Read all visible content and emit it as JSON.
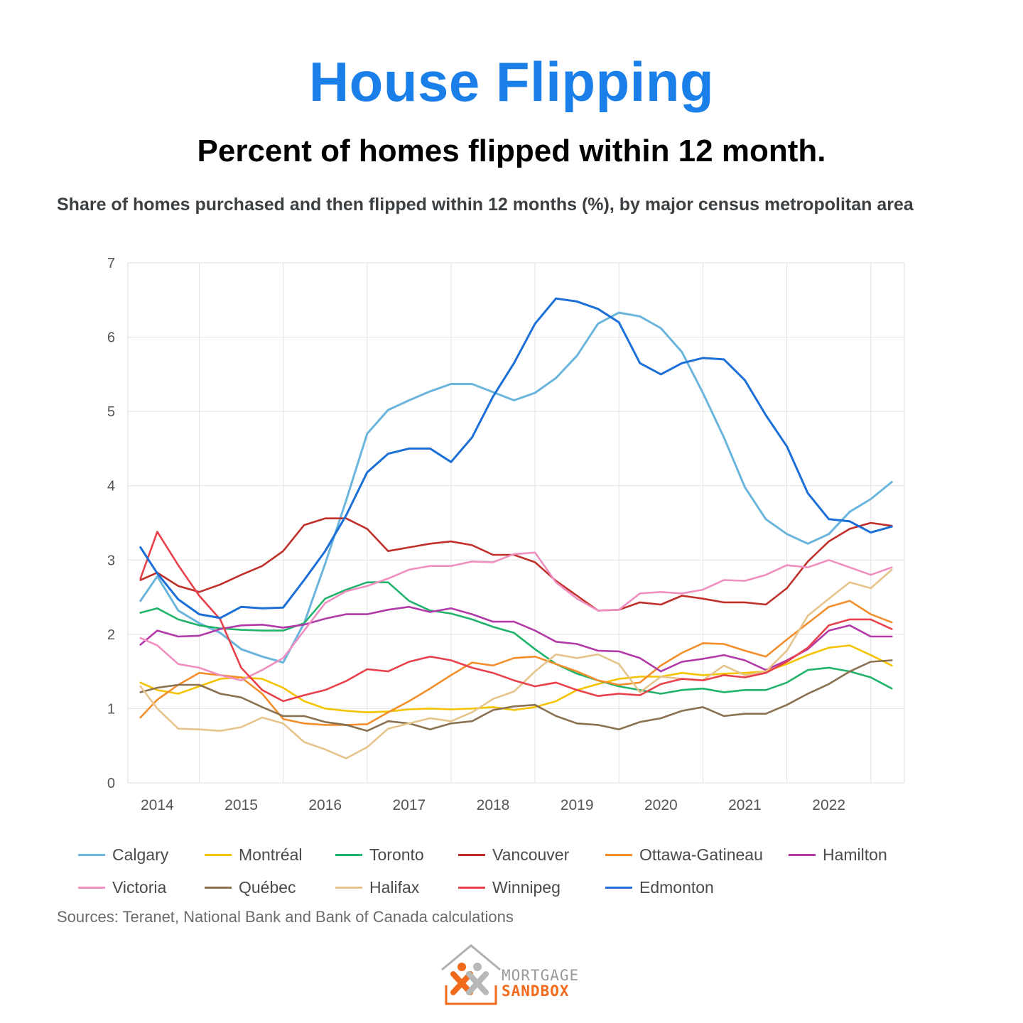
{
  "header": {
    "title": "House Flipping",
    "subtitle": "Percent of homes flipped within 12 month."
  },
  "chart_data": {
    "type": "line",
    "title": "Share of homes purchased and then flipped within 12 months (%), by major census metropolitan area",
    "xlabel": "",
    "ylabel": "",
    "ylim": [
      0,
      7
    ],
    "yticks": [
      "0",
      "1",
      "2",
      "3",
      "4",
      "5",
      "6",
      "7"
    ],
    "xlim": [
      2013.65,
      2022.9
    ],
    "xticks": [
      "2014",
      "2015",
      "2016",
      "2017",
      "2018",
      "2019",
      "2020",
      "2021",
      "2022"
    ],
    "grid": true,
    "legend_position": "bottom",
    "x": [
      2013.8,
      2014.0,
      2014.25,
      2014.5,
      2014.75,
      2015.0,
      2015.25,
      2015.5,
      2015.75,
      2016.0,
      2016.25,
      2016.5,
      2016.75,
      2017.0,
      2017.25,
      2017.5,
      2017.75,
      2018.0,
      2018.25,
      2018.5,
      2018.75,
      2019.0,
      2019.25,
      2019.5,
      2019.75,
      2020.0,
      2020.25,
      2020.5,
      2020.75,
      2021.0,
      2021.25,
      2021.5,
      2021.75,
      2022.0,
      2022.25,
      2022.5,
      2022.75
    ],
    "series": [
      {
        "name": "Calgary",
        "color": "#6bb5dd",
        "values": [
          2.45,
          2.78,
          2.32,
          2.15,
          2.02,
          1.8,
          1.7,
          1.62,
          2.15,
          2.95,
          3.8,
          4.7,
          5.02,
          5.15,
          5.27,
          5.37,
          5.37,
          5.26,
          5.15,
          5.25,
          5.45,
          5.75,
          6.18,
          6.33,
          6.28,
          6.12,
          5.8,
          5.25,
          4.65,
          3.98,
          3.55,
          3.35,
          3.22,
          3.35,
          3.65,
          3.82,
          4.05
        ]
      },
      {
        "name": "Montréal",
        "color": "#f4c400",
        "values": [
          1.35,
          1.25,
          1.2,
          1.3,
          1.4,
          1.42,
          1.4,
          1.28,
          1.1,
          1.0,
          0.97,
          0.95,
          0.96,
          0.99,
          1.0,
          0.99,
          1.0,
          1.02,
          0.98,
          1.02,
          1.1,
          1.25,
          1.33,
          1.4,
          1.43,
          1.43,
          1.48,
          1.45,
          1.47,
          1.48,
          1.5,
          1.6,
          1.72,
          1.82,
          1.85,
          1.72,
          1.58
        ]
      },
      {
        "name": "Toronto",
        "color": "#21b36b",
        "values": [
          2.29,
          2.35,
          2.2,
          2.12,
          2.08,
          2.06,
          2.05,
          2.05,
          2.15,
          2.48,
          2.6,
          2.7,
          2.7,
          2.45,
          2.32,
          2.28,
          2.2,
          2.1,
          2.02,
          1.8,
          1.6,
          1.47,
          1.38,
          1.3,
          1.25,
          1.2,
          1.25,
          1.27,
          1.22,
          1.25,
          1.25,
          1.35,
          1.52,
          1.55,
          1.5,
          1.42,
          1.27
        ]
      },
      {
        "name": "Vancouver",
        "color": "#c0302b",
        "values": [
          2.73,
          2.83,
          2.65,
          2.57,
          2.67,
          2.8,
          2.92,
          3.12,
          3.47,
          3.56,
          3.56,
          3.42,
          3.12,
          3.17,
          3.22,
          3.25,
          3.2,
          3.07,
          3.07,
          2.97,
          2.72,
          2.52,
          2.32,
          2.33,
          2.43,
          2.4,
          2.52,
          2.48,
          2.43,
          2.43,
          2.4,
          2.62,
          2.98,
          3.25,
          3.42,
          3.5,
          3.46
        ]
      },
      {
        "name": "Ottawa-Gatineau",
        "color": "#f28e2b",
        "values": [
          0.88,
          1.12,
          1.32,
          1.48,
          1.45,
          1.42,
          1.2,
          0.86,
          0.8,
          0.78,
          0.78,
          0.79,
          0.95,
          1.1,
          1.27,
          1.45,
          1.62,
          1.58,
          1.68,
          1.7,
          1.6,
          1.5,
          1.38,
          1.32,
          1.35,
          1.58,
          1.75,
          1.88,
          1.87,
          1.78,
          1.7,
          1.93,
          2.15,
          2.37,
          2.45,
          2.27,
          2.16
        ]
      },
      {
        "name": "Hamilton",
        "color": "#b23aa8",
        "values": [
          1.86,
          2.05,
          1.97,
          1.98,
          2.07,
          2.12,
          2.13,
          2.09,
          2.13,
          2.21,
          2.27,
          2.27,
          2.33,
          2.37,
          2.3,
          2.35,
          2.27,
          2.17,
          2.17,
          2.05,
          1.9,
          1.87,
          1.78,
          1.77,
          1.68,
          1.5,
          1.63,
          1.67,
          1.72,
          1.65,
          1.52,
          1.65,
          1.8,
          2.05,
          2.12,
          1.97,
          1.97
        ]
      },
      {
        "name": "Victoria",
        "color": "#ef8fc0",
        "values": [
          1.95,
          1.85,
          1.6,
          1.55,
          1.45,
          1.38,
          1.52,
          1.68,
          2.05,
          2.42,
          2.58,
          2.65,
          2.75,
          2.87,
          2.92,
          2.92,
          2.98,
          2.97,
          3.08,
          3.1,
          2.7,
          2.48,
          2.32,
          2.33,
          2.55,
          2.57,
          2.55,
          2.6,
          2.73,
          2.72,
          2.8,
          2.93,
          2.9,
          3.0,
          2.9,
          2.8,
          2.9
        ]
      },
      {
        "name": "Québec",
        "color": "#8a7150",
        "values": [
          1.22,
          1.28,
          1.32,
          1.32,
          1.2,
          1.15,
          1.02,
          0.9,
          0.9,
          0.82,
          0.78,
          0.7,
          0.83,
          0.8,
          0.72,
          0.8,
          0.83,
          0.98,
          1.03,
          1.05,
          0.9,
          0.8,
          0.78,
          0.72,
          0.82,
          0.87,
          0.97,
          1.02,
          0.9,
          0.93,
          0.93,
          1.05,
          1.2,
          1.33,
          1.5,
          1.63,
          1.65
        ]
      },
      {
        "name": "Halifax",
        "color": "#e6c48c",
        "values": [
          1.3,
          1.0,
          0.73,
          0.72,
          0.7,
          0.75,
          0.88,
          0.8,
          0.55,
          0.45,
          0.33,
          0.48,
          0.73,
          0.8,
          0.87,
          0.83,
          0.95,
          1.13,
          1.23,
          1.5,
          1.73,
          1.68,
          1.73,
          1.6,
          1.22,
          1.43,
          1.4,
          1.38,
          1.58,
          1.45,
          1.5,
          1.78,
          2.25,
          2.48,
          2.7,
          2.62,
          2.87
        ]
      },
      {
        "name": "Winnipeg",
        "color": "#e8414b",
        "values": [
          2.75,
          3.38,
          2.93,
          2.52,
          2.2,
          1.55,
          1.25,
          1.1,
          1.18,
          1.25,
          1.37,
          1.53,
          1.5,
          1.63,
          1.7,
          1.65,
          1.55,
          1.48,
          1.38,
          1.3,
          1.35,
          1.25,
          1.17,
          1.2,
          1.18,
          1.33,
          1.4,
          1.38,
          1.45,
          1.42,
          1.48,
          1.63,
          1.82,
          2.12,
          2.2,
          2.2,
          2.07
        ]
      },
      {
        "name": "Edmonton",
        "color": "#1b6fd6",
        "values": [
          3.17,
          2.82,
          2.47,
          2.27,
          2.22,
          2.37,
          2.35,
          2.36,
          2.73,
          3.12,
          3.6,
          4.18,
          4.43,
          4.5,
          4.5,
          4.32,
          4.65,
          5.2,
          5.65,
          6.18,
          6.52,
          6.48,
          6.38,
          6.2,
          5.65,
          5.5,
          5.65,
          5.72,
          5.7,
          5.42,
          4.95,
          4.53,
          3.9,
          3.55,
          3.52,
          3.37,
          3.45
        ]
      }
    ]
  },
  "legend": {
    "items": [
      "Calgary",
      "Montréal",
      "Toronto",
      "Vancouver",
      "Ottawa-Gatineau",
      "Hamilton",
      "Victoria",
      "Québec",
      "Halifax",
      "Winnipeg",
      "Edmonton"
    ]
  },
  "footer": {
    "sources": "Sources: Teranet, National Bank and Bank of Canada calculations"
  },
  "logo": {
    "line1": "MORTGAGE",
    "line2": "SANDBOX",
    "color_line1": "#9a9a9a",
    "color_line2": "#f26a1b"
  }
}
